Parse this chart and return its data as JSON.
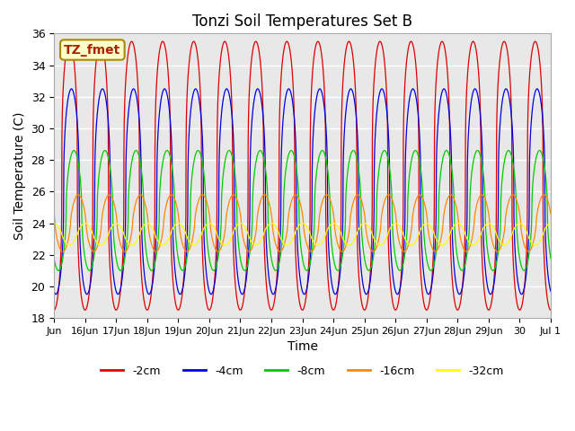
{
  "title": "Tonzi Soil Temperatures Set B",
  "xlabel": "Time",
  "ylabel": "Soil Temperature (C)",
  "ylim": [
    18,
    36
  ],
  "annotation": "TZ_fmet",
  "bg_color": "#e8e8e8",
  "fig_color": "#ffffff",
  "grid_color": "#ffffff",
  "series": [
    {
      "label": "-2cm",
      "color": "#dd0000",
      "amplitude": 8.5,
      "mean": 27.0,
      "phase_days": 0.0,
      "sharpness": 3.0
    },
    {
      "label": "-4cm",
      "color": "#0000dd",
      "amplitude": 6.5,
      "mean": 26.0,
      "phase_days": 0.06,
      "sharpness": 2.5
    },
    {
      "label": "-8cm",
      "color": "#00cc00",
      "amplitude": 3.8,
      "mean": 24.8,
      "phase_days": 0.14,
      "sharpness": 2.0
    },
    {
      "label": "-16cm",
      "color": "#ff8800",
      "amplitude": 1.8,
      "mean": 24.0,
      "phase_days": 0.28,
      "sharpness": 1.5
    },
    {
      "label": "-32cm",
      "color": "#ffff00",
      "amplitude": 0.7,
      "mean": 23.3,
      "phase_days": 0.5,
      "sharpness": 1.2
    }
  ],
  "xtick_positions": [
    15,
    16,
    17,
    18,
    19,
    20,
    21,
    22,
    23,
    24,
    25,
    26,
    27,
    28,
    29,
    30,
    31
  ],
  "xtick_labels": [
    "Jun",
    "16Jun",
    "17Jun",
    "18Jun",
    "19Jun",
    "20Jun",
    "21Jun",
    "22Jun",
    "23Jun",
    "24Jun",
    "25Jun",
    "26Jun",
    "27Jun",
    "28Jun",
    "29Jun",
    "30",
    "Jul 1"
  ],
  "ytick_positions": [
    18,
    20,
    22,
    24,
    26,
    28,
    30,
    32,
    34,
    36
  ],
  "start_day": 15,
  "end_day": 31,
  "n_points": 3200
}
